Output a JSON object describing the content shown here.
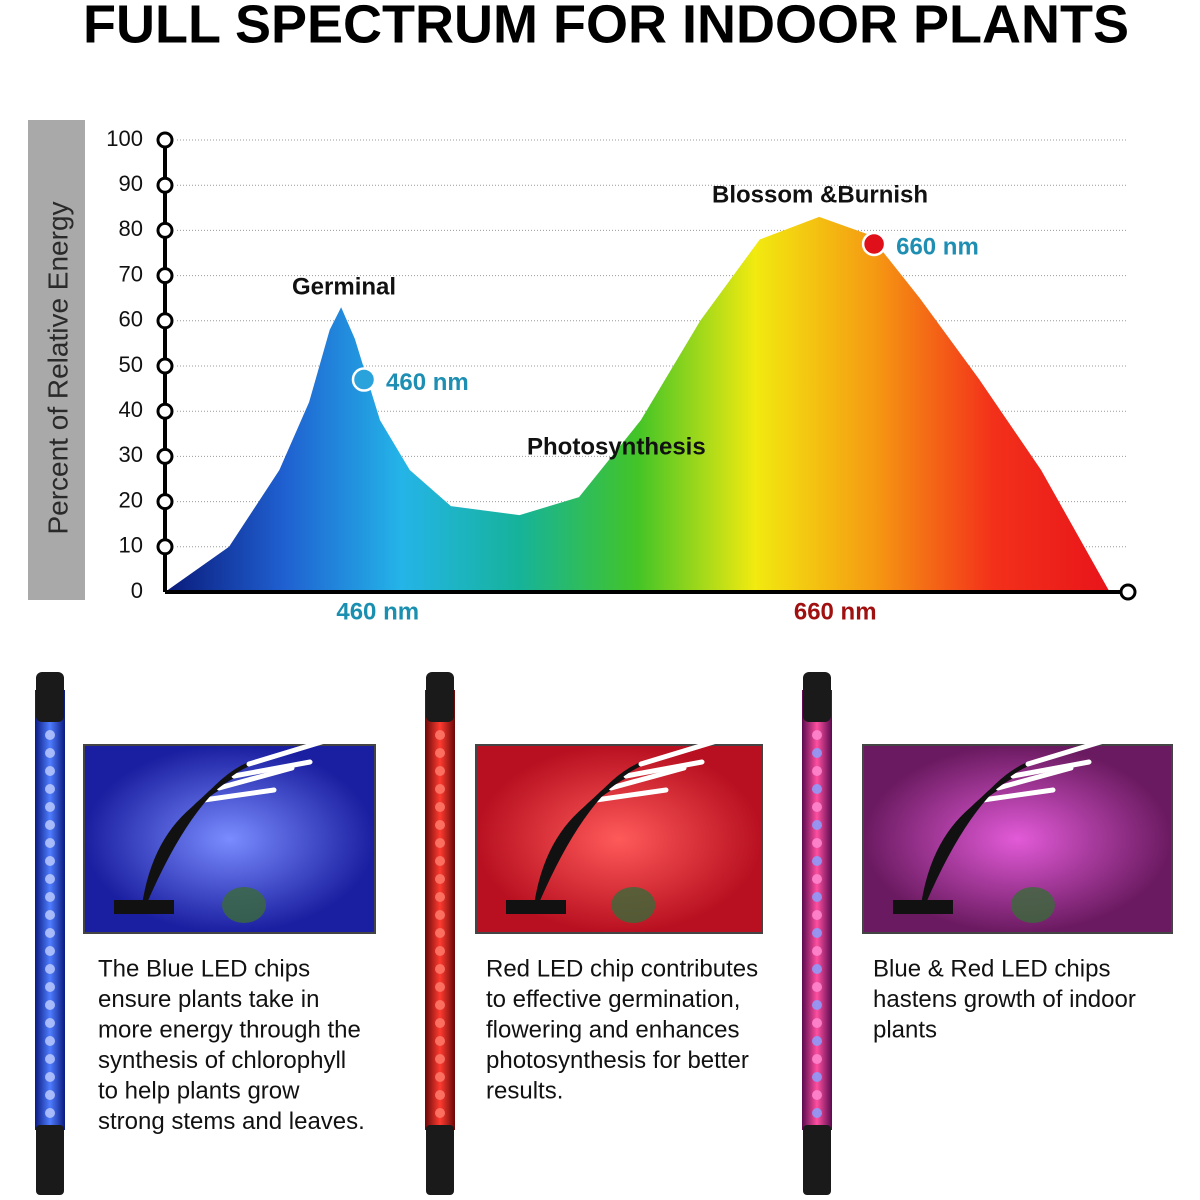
{
  "title": "FULL SPECTRUM FOR INDOOR PLANTS",
  "chart_data": {
    "type": "area",
    "ylabel": "Percent of Relative Energy",
    "x": [
      367,
      395,
      417,
      430,
      439,
      444,
      450,
      461,
      474,
      492,
      522,
      548,
      575,
      601,
      627,
      653,
      675,
      697,
      723,
      750,
      780
    ],
    "values": [
      0,
      10,
      27,
      42,
      58,
      63,
      56,
      38,
      27,
      19,
      17,
      21,
      38,
      60,
      78,
      83,
      79,
      65,
      47,
      27,
      0
    ],
    "fill_colors": [
      "#0a1a7a",
      "#1f5fd0",
      "#24b4e8",
      "#16b39a",
      "#43c427",
      "#f2ea10",
      "#f59a12",
      "#f3311a",
      "#e8141a"
    ],
    "xlim": [
      367,
      788
    ],
    "ylim": [
      0,
      100
    ],
    "xticks": [
      {
        "value": 460,
        "label": "460 nm"
      },
      {
        "value": 660,
        "label": "660 nm"
      }
    ],
    "yticks": [
      0,
      10,
      20,
      30,
      40,
      50,
      60,
      70,
      80,
      90,
      100
    ],
    "grid": true,
    "annotations": [
      "Germinal",
      "Photosynthesis",
      "Blossom &Burnish"
    ],
    "markers": [
      {
        "label": "460 nm",
        "x": 454,
        "y": 47,
        "color": "#2aa3dd"
      },
      {
        "label": "660 nm",
        "x": 677,
        "y": 77,
        "color": "#e0101a"
      }
    ]
  },
  "panels": [
    {
      "lines": [
        "The Blue LED chips",
        "ensure plants take in",
        "more energy through the",
        "synthesis of chlorophyll",
        "to help plants grow",
        "strong stems and leaves."
      ]
    },
    {
      "lines": [
        "Red LED chip contributes",
        "to effective germination,",
        "flowering and enhances",
        "photosynthesis for better",
        "results."
      ]
    },
    {
      "lines": [
        "Blue & Red LED chips",
        "hastens growth of indoor",
        "plants"
      ]
    }
  ]
}
